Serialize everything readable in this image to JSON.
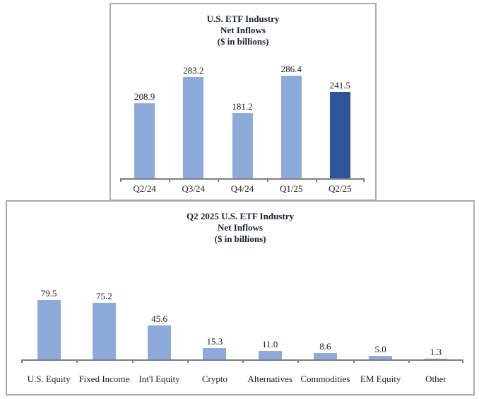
{
  "colors": {
    "bar_light": "#8EAADB",
    "bar_dark": "#2F5597",
    "axis": "#7f7f7f",
    "box_border": "#ABABAB",
    "title_text": "#1B2035",
    "label_text": "#1C1C1C"
  },
  "chart_data": [
    {
      "type": "bar",
      "title_lines": [
        "U.S. ETF Industry",
        "Net Inflows",
        "($ in billions)"
      ],
      "categories": [
        "Q2/24",
        "Q3/24",
        "Q4/24",
        "Q1/25",
        "Q2/25"
      ],
      "values": [
        208.9,
        283.2,
        181.2,
        286.4,
        241.5
      ],
      "value_labels": [
        "208.9",
        "283.2",
        "181.2",
        "286.4",
        "241.5"
      ],
      "highlight_index": 4,
      "ylim": [
        0,
        300
      ],
      "grid": false,
      "legend": "none",
      "xlabel": "",
      "ylabel": ""
    },
    {
      "type": "bar",
      "title_lines": [
        "Q2 2025 U.S. ETF Industry",
        "Net Inflows",
        "($ in billions)"
      ],
      "categories": [
        "U.S. Equity",
        "Fixed Income",
        "Int'l Equity",
        "Crypto",
        "Alternatives",
        "Commodities",
        "EM Equity",
        "Other"
      ],
      "values": [
        79.5,
        75.2,
        45.6,
        15.3,
        11.0,
        8.6,
        5.0,
        1.3
      ],
      "value_labels": [
        "79.5",
        "75.2",
        "45.6",
        "15.3",
        "11.0",
        "8.6",
        "5.0",
        "1.3"
      ],
      "highlight_index": null,
      "ylim": [
        0,
        120
      ],
      "grid": false,
      "legend": "none",
      "xlabel": "",
      "ylabel": ""
    }
  ]
}
